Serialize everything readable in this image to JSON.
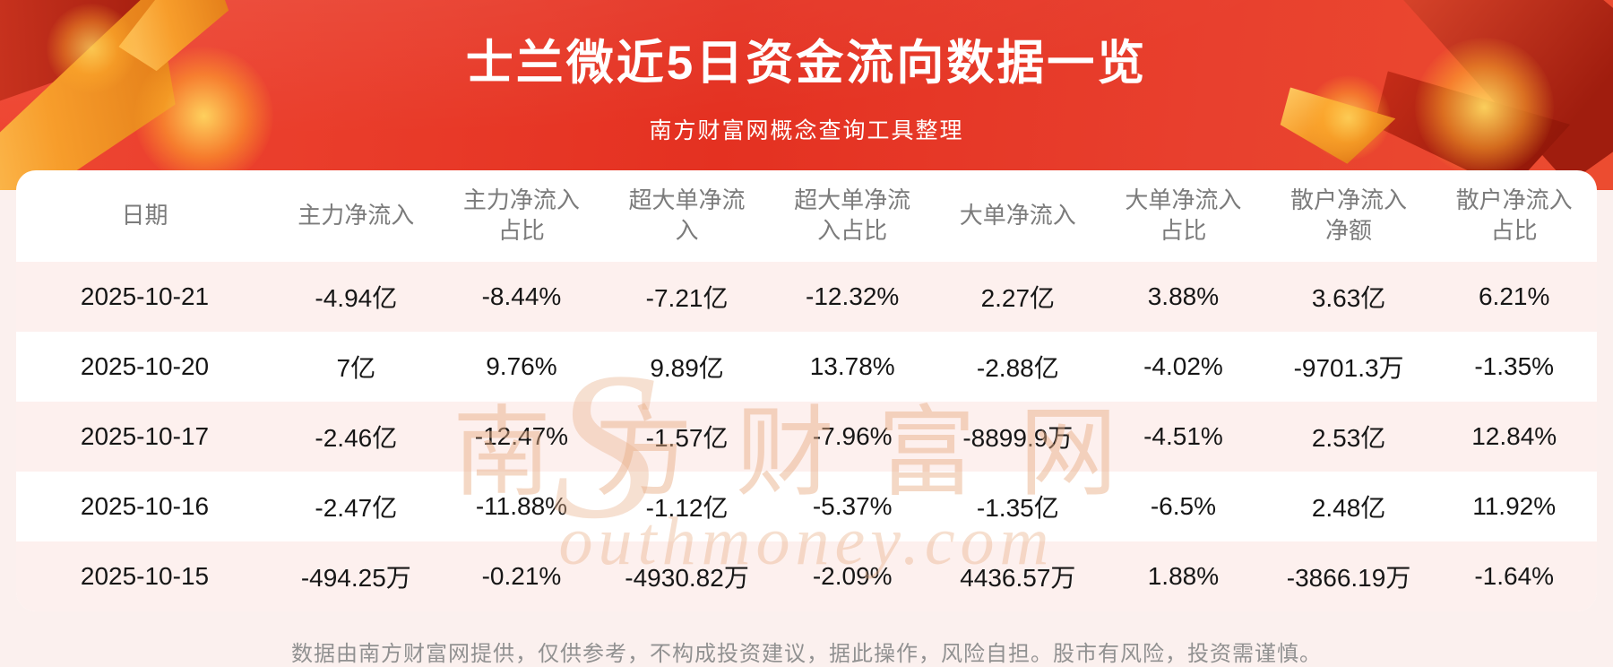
{
  "header": {
    "title": "士兰微近5日资金流向数据一览",
    "subtitle": "南方财富网概念查询工具整理"
  },
  "watermark": {
    "initial": "S",
    "cn": "南方财富网",
    "en": "outhmoney.com"
  },
  "footer": {
    "disclaimer": "数据由南方财富网提供，仅供参考，不构成投资建议，据此操作，风险自担。股市有风险，投资需谨慎。"
  },
  "colors": {
    "banner_red": "#e63224",
    "row_alt_pink": "#fdf0ee",
    "page_background_pink": "#fbf0ee",
    "gold_accent": "#f79d2b",
    "header_text_gray": "#7b7b7b",
    "body_text": "#161616",
    "watermark_tan": "#e7ae86"
  },
  "chart_data": {
    "type": "table",
    "title": "士兰微近5日资金流向数据一览",
    "columns": [
      "日期",
      "主力净流入",
      "主力净流入占比",
      "超大单净流入",
      "超大单净流入占比",
      "大单净流入",
      "大单净流入占比",
      "散户净流入净额",
      "散户净流入占比"
    ],
    "rows": [
      [
        "2025-10-21",
        "-4.94亿",
        "-8.44%",
        "-7.21亿",
        "-12.32%",
        "2.27亿",
        "3.88%",
        "3.63亿",
        "6.21%"
      ],
      [
        "2025-10-20",
        "7亿",
        "9.76%",
        "9.89亿",
        "13.78%",
        "-2.88亿",
        "-4.02%",
        "-9701.3万",
        "-1.35%"
      ],
      [
        "2025-10-17",
        "-2.46亿",
        "-12.47%",
        "-1.57亿",
        "-7.96%",
        "-8899.9万",
        "-4.51%",
        "2.53亿",
        "12.84%"
      ],
      [
        "2025-10-16",
        "-2.47亿",
        "-11.88%",
        "-1.12亿",
        "-5.37%",
        "-1.35亿",
        "-6.5%",
        "2.48亿",
        "11.92%"
      ],
      [
        "2025-10-15",
        "-494.25万",
        "-0.21%",
        "-4930.82万",
        "-2.09%",
        "4436.57万",
        "1.88%",
        "-3866.19万",
        "-1.64%"
      ]
    ]
  }
}
